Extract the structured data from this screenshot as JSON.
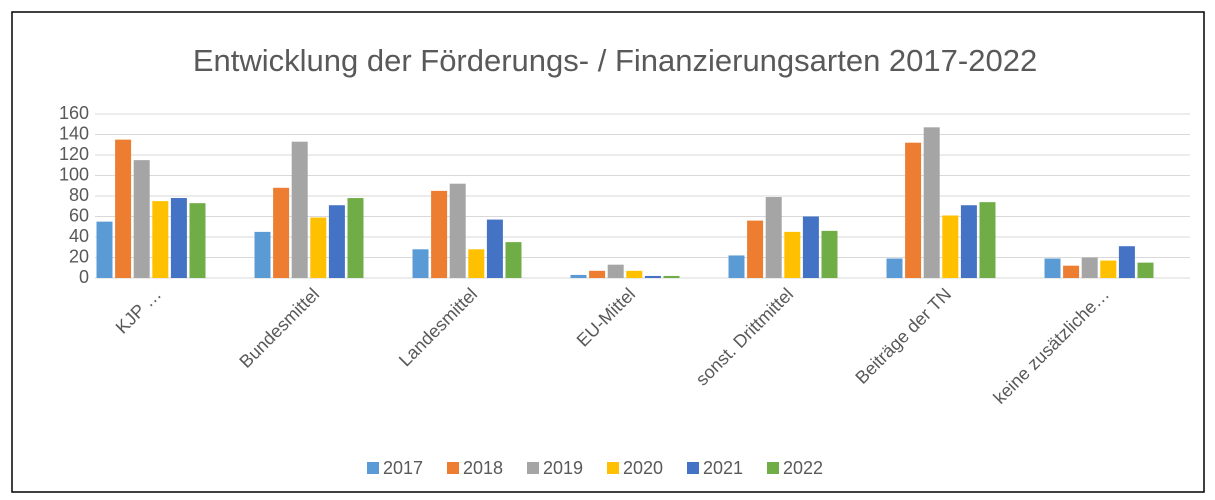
{
  "chart_data": {
    "type": "bar",
    "title": "Entwicklung der Förderungs- / Finanzierungsarten 2017-2022",
    "categories": [
      "KJP …",
      "Bundesmittel",
      "Landesmittel",
      "EU-Mittel",
      "sonst. Drittmittel",
      "Beiträge der TN",
      "keine zusätzliche…"
    ],
    "series": [
      {
        "name": "2017",
        "color": "#5b9bd5",
        "values": [
          55,
          45,
          28,
          3,
          22,
          19,
          19
        ]
      },
      {
        "name": "2018",
        "color": "#ed7d31",
        "values": [
          135,
          88,
          85,
          7,
          56,
          132,
          12
        ]
      },
      {
        "name": "2019",
        "color": "#a5a5a5",
        "values": [
          115,
          133,
          92,
          13,
          79,
          147,
          20
        ]
      },
      {
        "name": "2020",
        "color": "#ffc000",
        "values": [
          75,
          59,
          28,
          7,
          45,
          61,
          17
        ]
      },
      {
        "name": "2021",
        "color": "#4472c4",
        "values": [
          78,
          71,
          57,
          2,
          60,
          71,
          31
        ]
      },
      {
        "name": "2022",
        "color": "#70ad47",
        "values": [
          73,
          78,
          35,
          2,
          46,
          74,
          15
        ]
      }
    ],
    "ylim": [
      0,
      160
    ],
    "yticks": [
      0,
      20,
      40,
      60,
      80,
      100,
      120,
      140,
      160
    ],
    "grid": true,
    "legend": "bottom"
  }
}
